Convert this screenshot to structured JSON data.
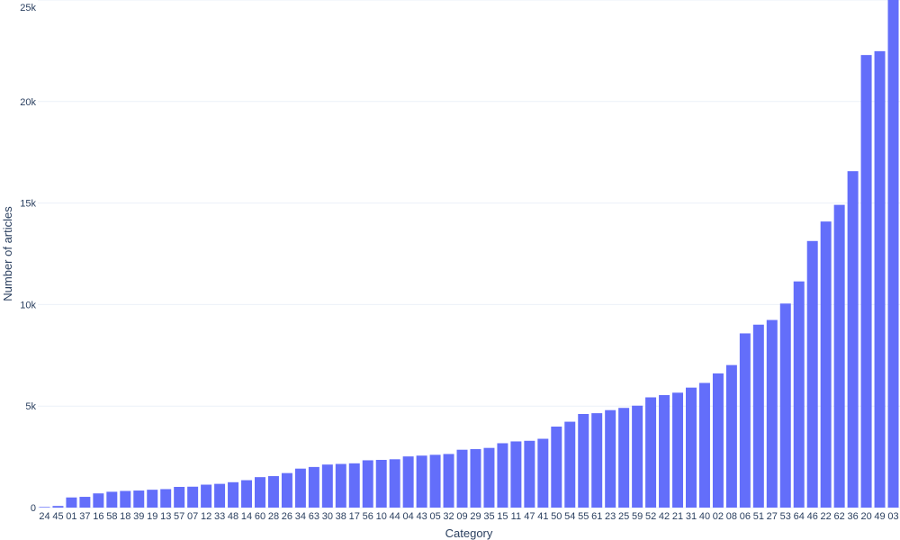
{
  "chart_data": {
    "type": "bar",
    "title": "",
    "xlabel": "Category",
    "ylabel": "Number of articles",
    "ylim": [
      0,
      25000
    ],
    "yticks": [
      0,
      5000,
      10000,
      15000,
      20000,
      25000
    ],
    "ytick_labels": [
      "0",
      "5k",
      "10k",
      "15k",
      "20k",
      "25k"
    ],
    "grid": true,
    "bar_color": "#636efa",
    "categories": [
      "24",
      "45",
      "01",
      "37",
      "16",
      "58",
      "18",
      "39",
      "19",
      "13",
      "57",
      "07",
      "12",
      "33",
      "48",
      "14",
      "60",
      "28",
      "26",
      "34",
      "63",
      "30",
      "38",
      "17",
      "56",
      "10",
      "44",
      "04",
      "43",
      "05",
      "32",
      "09",
      "29",
      "35",
      "15",
      "11",
      "47",
      "41",
      "50",
      "54",
      "55",
      "61",
      "23",
      "25",
      "59",
      "52",
      "42",
      "21",
      "31",
      "40",
      "02",
      "08",
      "06",
      "51",
      "27",
      "53",
      "64",
      "46",
      "22",
      "62",
      "36",
      "20",
      "49",
      "03"
    ],
    "values": [
      30,
      80,
      500,
      530,
      700,
      780,
      820,
      840,
      880,
      910,
      1020,
      1030,
      1130,
      1170,
      1250,
      1350,
      1500,
      1550,
      1700,
      1920,
      2000,
      2120,
      2150,
      2180,
      2330,
      2350,
      2380,
      2520,
      2560,
      2600,
      2640,
      2850,
      2880,
      2940,
      3170,
      3260,
      3290,
      3390,
      3990,
      4230,
      4610,
      4650,
      4800,
      4910,
      5020,
      5430,
      5540,
      5660,
      5910,
      6140,
      6610,
      7020,
      8580,
      9010,
      9240,
      10050,
      11140,
      13130,
      14090,
      14910,
      16570,
      22290,
      22480,
      25500
    ]
  }
}
